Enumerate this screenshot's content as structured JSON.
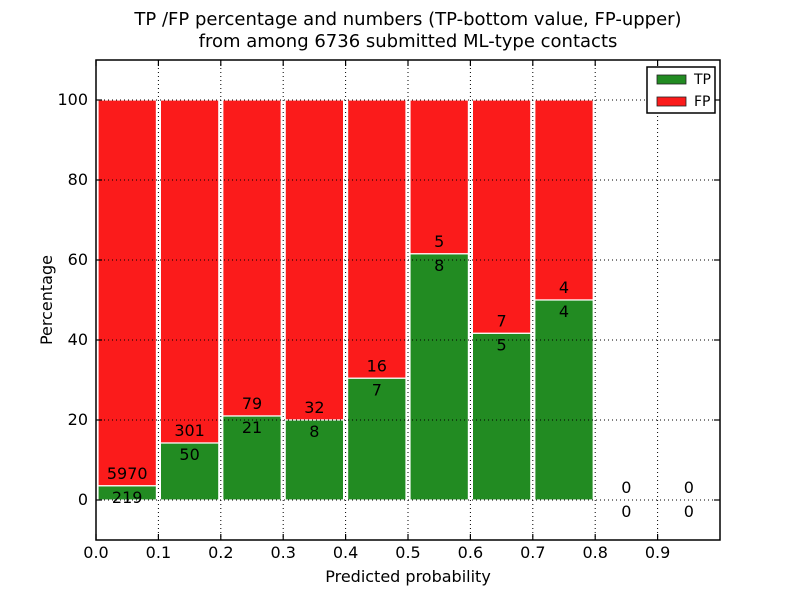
{
  "chart_data": {
    "type": "bar",
    "stacked": true,
    "title_lines": [
      "TP /FP percentage and numbers (TP-bottom value, FP-upper)",
      "from among 6736 submitted ML-type contacts"
    ],
    "xlabel": "Predicted probability",
    "ylabel": "Percentage",
    "x_ticks": [
      "0.0",
      "0.1",
      "0.2",
      "0.3",
      "0.4",
      "0.5",
      "0.6",
      "0.7",
      "0.8",
      "0.9"
    ],
    "y_ticks": [
      "0",
      "20",
      "40",
      "60",
      "80",
      "100"
    ],
    "xlim": [
      0.0,
      1.0
    ],
    "ylim": [
      -10,
      110
    ],
    "grid": "dotted",
    "total_contacts": 6736,
    "bins": [
      {
        "x0": 0.0,
        "x1": 0.1,
        "tp": 219,
        "fp": 5970,
        "tp_pct": 3.5
      },
      {
        "x0": 0.1,
        "x1": 0.2,
        "tp": 50,
        "fp": 301,
        "tp_pct": 14.2
      },
      {
        "x0": 0.2,
        "x1": 0.3,
        "tp": 21,
        "fp": 79,
        "tp_pct": 21.0
      },
      {
        "x0": 0.3,
        "x1": 0.4,
        "tp": 8,
        "fp": 32,
        "tp_pct": 20.0
      },
      {
        "x0": 0.4,
        "x1": 0.5,
        "tp": 7,
        "fp": 16,
        "tp_pct": 30.4
      },
      {
        "x0": 0.5,
        "x1": 0.6,
        "tp": 8,
        "fp": 5,
        "tp_pct": 61.5
      },
      {
        "x0": 0.6,
        "x1": 0.7,
        "tp": 5,
        "fp": 7,
        "tp_pct": 41.7
      },
      {
        "x0": 0.7,
        "x1": 0.8,
        "tp": 4,
        "fp": 4,
        "tp_pct": 50.0
      },
      {
        "x0": 0.8,
        "x1": 0.9,
        "tp": 0,
        "fp": 0,
        "tp_pct": 0.0
      },
      {
        "x0": 0.9,
        "x1": 1.0,
        "tp": 0,
        "fp": 0,
        "tp_pct": 0.0
      }
    ],
    "series": [
      {
        "name": "TP",
        "counts": [
          219,
          50,
          21,
          8,
          7,
          8,
          5,
          4,
          0,
          0
        ]
      },
      {
        "name": "FP",
        "counts": [
          5970,
          301,
          79,
          32,
          16,
          5,
          7,
          4,
          0,
          0
        ]
      }
    ],
    "legend": [
      {
        "label": "TP",
        "color": "#228b22"
      },
      {
        "label": "FP",
        "color": "#fb1b1b"
      }
    ],
    "legend_position": "upper right",
    "colors": {
      "tp": "#228b22",
      "fp": "#fb1b1b",
      "grid": "#000000",
      "spine": "#000000",
      "bar_edge": "#ffffff"
    }
  }
}
